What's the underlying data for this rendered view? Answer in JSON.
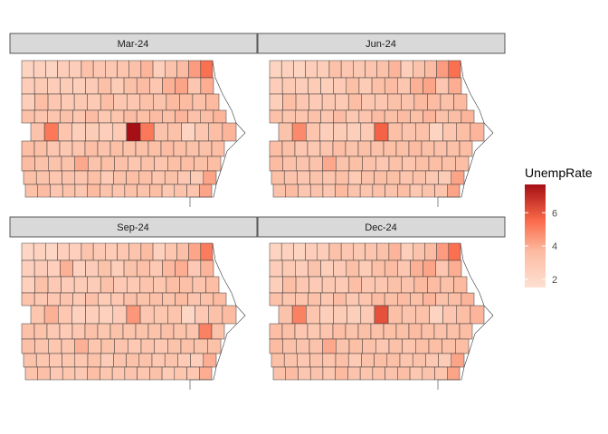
{
  "chart_data": {
    "type": "heatmap",
    "subtype": "choropleth-small-multiples",
    "region": "Iowa counties",
    "panels": [
      {
        "label": "Mar-24"
      },
      {
        "label": "Jun-24"
      },
      {
        "label": "Sep-24"
      },
      {
        "label": "Dec-24"
      }
    ],
    "legend": {
      "title": "UnempRate",
      "ticks": [
        2,
        4,
        6
      ],
      "range": [
        1.5,
        7.7
      ],
      "color_low": "#FEE0D2",
      "color_high": "#A50F15"
    },
    "county_grid_rows": [
      [
        2.2,
        2.4,
        2.2,
        2.6,
        2.6,
        3.3,
        3.0,
        2.9,
        3.1,
        3.3,
        3.8,
        2.5,
        3.2,
        3.6,
        4.4,
        5.4
      ],
      [
        2.6,
        2.8,
        2.6,
        2.7,
        2.5,
        2.8,
        3.4,
        2.7,
        3.4,
        3.6,
        3.0,
        3.9,
        4.2,
        3.0,
        4.0
      ],
      [
        2.5,
        3.5,
        3.0,
        2.8,
        2.9,
        2.8,
        3.5,
        3.0,
        3.0,
        3.3,
        3.2,
        3.7,
        3.6,
        3.3,
        3.7
      ],
      [
        3.3,
        3.1,
        3.1,
        3.3,
        3.0,
        3.6,
        2.9,
        3.1,
        3.6,
        3.4,
        3.6,
        3.4,
        3.8,
        3.3,
        3.5,
        3.8
      ],
      [
        3.2,
        5.2,
        3.1,
        2.5,
        2.7,
        2.5,
        2.8,
        7.7,
        5.2,
        3.2,
        3.3,
        2.2,
        3.0,
        3.5,
        3.8
      ],
      [
        3.5,
        3.4,
        3.0,
        2.9,
        3.1,
        3.5,
        3.2,
        3.4,
        3.3,
        3.4,
        3.4,
        3.6,
        3.4,
        3.3,
        3.3,
        3.5
      ],
      [
        3.6,
        3.3,
        3.2,
        3.2,
        4.1,
        3.2,
        3.4,
        3.3,
        3.0,
        3.3,
        3.1,
        3.4,
        3.5,
        3.4,
        3.5
      ],
      [
        3.4,
        3.2,
        3.0,
        3.2,
        3.1,
        3.4,
        2.8,
        3.3,
        3.5,
        3.4,
        3.1,
        3.3,
        2.9,
        2.7,
        4.2
      ],
      [
        3.3,
        3.6,
        3.0,
        3.2,
        3.0,
        3.7,
        3.2,
        3.1,
        3.3,
        3.2,
        3.5,
        2.9,
        3.2,
        3.1,
        4.2
      ]
    ],
    "panel_adjustments": [
      {
        "highlights": [],
        "scale": 1.0
      },
      {
        "highlights": [
          {
            "row": 4,
            "col": 1,
            "value": 4.8
          },
          {
            "row": 4,
            "col": 7,
            "value": 5.7
          },
          {
            "row": 4,
            "col": 8,
            "value": 3.4
          }
        ],
        "scale": 1.0
      },
      {
        "highlights": [
          {
            "row": 4,
            "col": 1,
            "value": 3.9
          },
          {
            "row": 4,
            "col": 7,
            "value": 4.5
          },
          {
            "row": 4,
            "col": 8,
            "value": 3.0
          },
          {
            "row": 1,
            "col": 3,
            "value": 3.9
          },
          {
            "row": 5,
            "col": 14,
            "value": 5.0
          },
          {
            "row": 4,
            "col": 15,
            "value": 4.8
          }
        ],
        "scale": 0.95
      },
      {
        "highlights": [
          {
            "row": 4,
            "col": 1,
            "value": 5.0
          },
          {
            "row": 4,
            "col": 7,
            "value": 6.1
          },
          {
            "row": 4,
            "col": 8,
            "value": 3.4
          },
          {
            "row": 1,
            "col": 3,
            "value": 3.2
          }
        ],
        "scale": 1.0
      }
    ]
  }
}
